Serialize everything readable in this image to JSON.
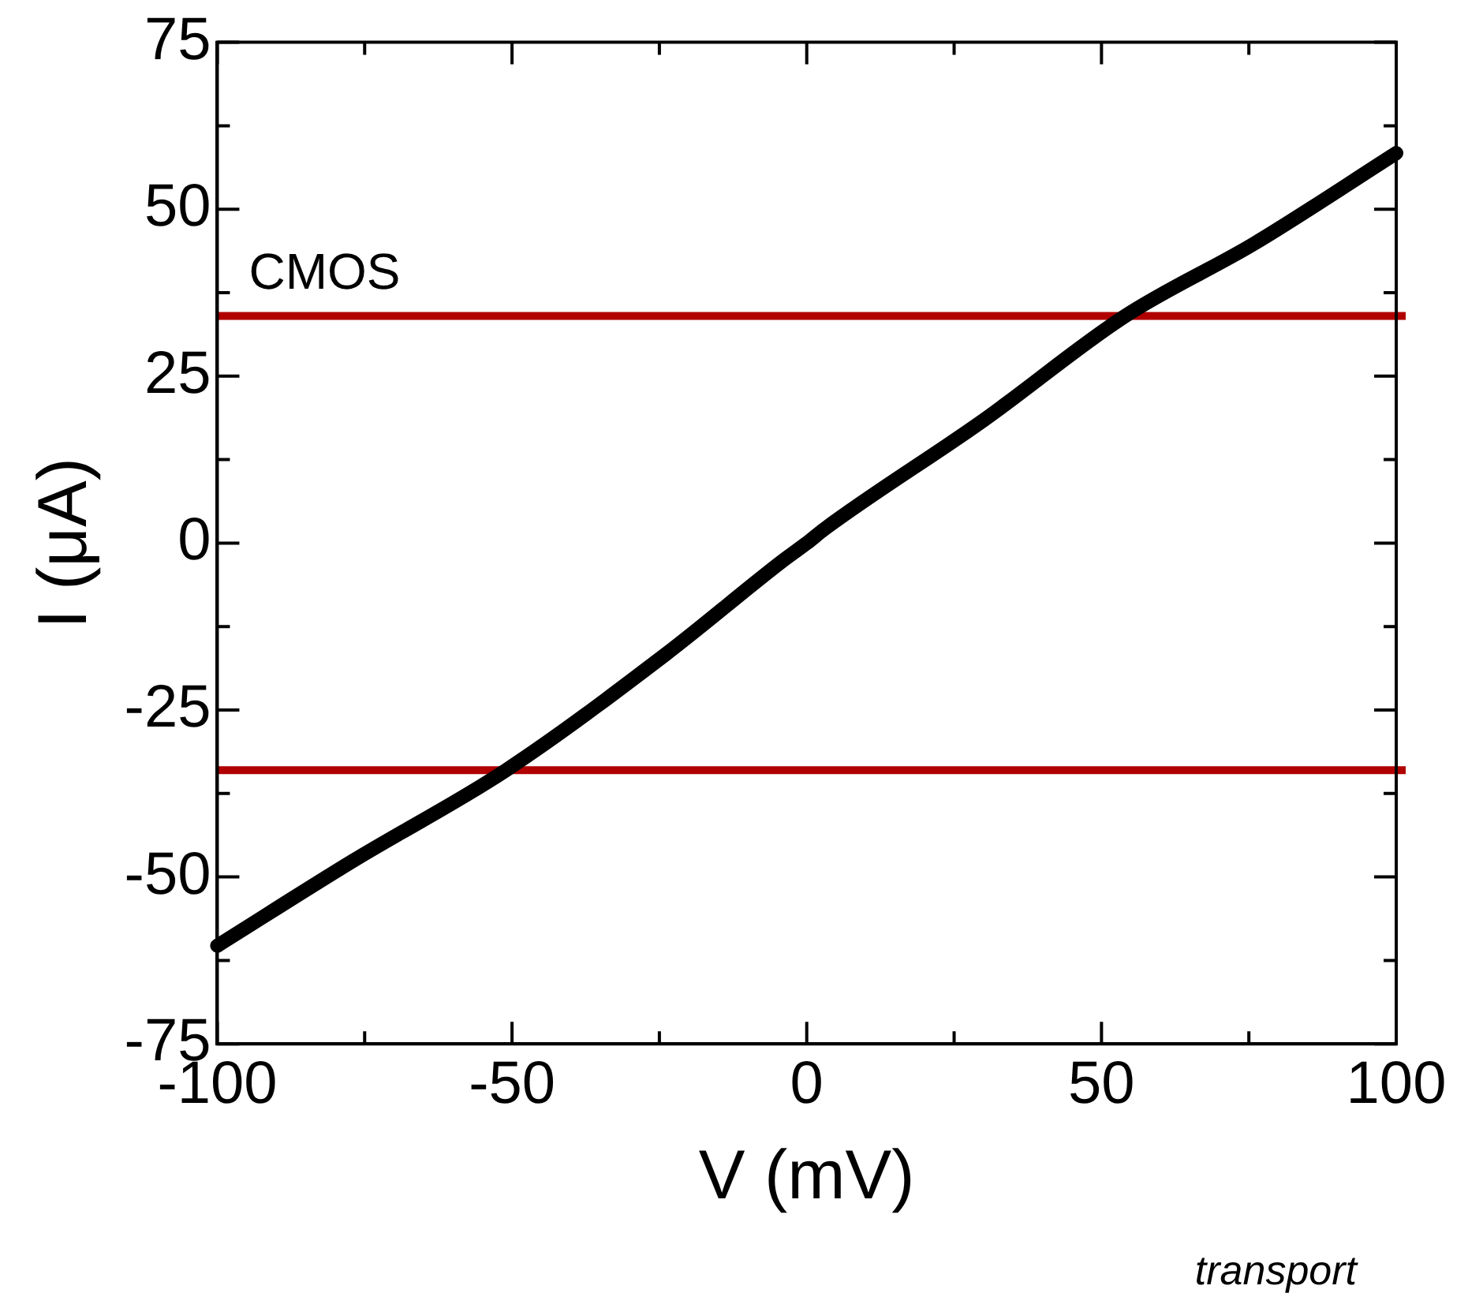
{
  "chart_data": {
    "type": "line",
    "xlabel": "V (mV)",
    "ylabel": "I (μA)",
    "series": [
      {
        "color": "#000000",
        "x": [
          -100,
          -77,
          -51,
          -24,
          -4,
          0,
          3,
          30,
          54,
          76,
          100
        ],
        "values": [
          -60.3,
          -47.6,
          -34,
          -16.7,
          -2.6,
          0,
          2.1,
          18.4,
          34,
          44.9,
          58.4
        ]
      }
    ],
    "xlim": [
      -100,
      100
    ],
    "ylim": [
      -75,
      75
    ],
    "xticks": [
      -100,
      {
        "value": -75,
        "label": null
      },
      -50,
      {
        "value": -25,
        "label": null
      },
      0,
      {
        "value": 25,
        "label": null
      },
      50,
      {
        "value": 75,
        "label": null
      },
      100
    ],
    "yticks": [
      -75,
      {
        "value": -62.5,
        "label": null
      },
      -50,
      {
        "value": -37.5,
        "label": null
      },
      -25,
      {
        "value": -12.5,
        "label": null
      },
      0,
      {
        "value": 12.5,
        "label": null
      },
      25,
      {
        "value": 37.5,
        "label": null
      },
      50,
      {
        "value": 62.5,
        "label": null
      },
      75
    ],
    "ref_lines": [
      {
        "axis": "y",
        "value": 34,
        "label": "CMOS",
        "color": "#b00000"
      },
      {
        "axis": "y",
        "value": -34,
        "label": null,
        "color": "#b00000"
      }
    ],
    "marker": "none",
    "line_style": "solid",
    "grid": false,
    "legend": false,
    "annotations": [
      "transport"
    ]
  }
}
